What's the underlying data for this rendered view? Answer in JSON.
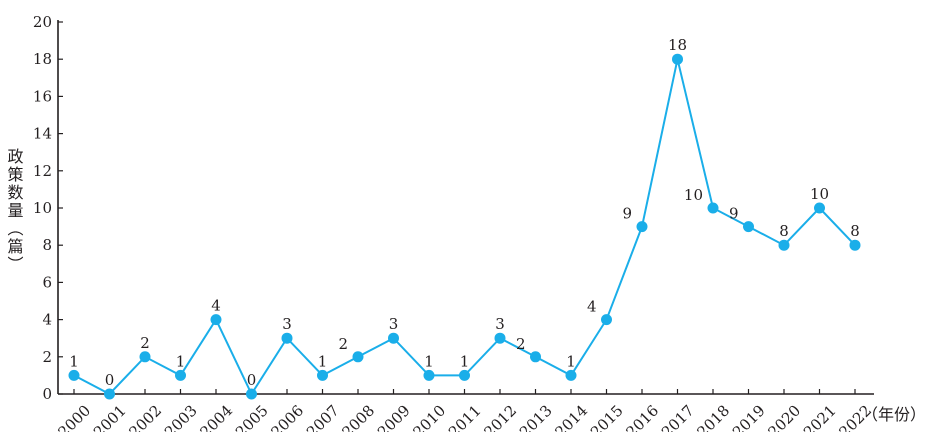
{
  "chart_data": {
    "type": "line",
    "ylabel": "政策数量（篇）",
    "xlabel": "（年份）",
    "ylim": [
      0,
      20
    ],
    "y_ticks": [
      "0",
      "2",
      "4",
      "6",
      "8",
      "10",
      "12",
      "14",
      "16",
      "18",
      "20"
    ],
    "categories": [
      "2000",
      "2001",
      "2002",
      "2003",
      "2004",
      "2005",
      "2006",
      "2007",
      "2008",
      "2009",
      "2010",
      "2011",
      "2012",
      "2013",
      "2014",
      "2015",
      "2016",
      "2017",
      "2018",
      "2019",
      "2020",
      "2021",
      "2022"
    ],
    "series": [
      {
        "values": [
          1,
          0,
          2,
          1,
          4,
          0,
          3,
          1,
          2,
          3,
          1,
          1,
          3,
          2,
          1,
          4,
          9,
          18,
          10,
          9,
          8,
          10,
          8
        ],
        "data_labels": [
          "1",
          "0",
          "2",
          "1",
          "4",
          "0",
          "3",
          "1",
          "2",
          "3",
          "1",
          "1",
          "3",
          "2",
          "1",
          "4",
          "9",
          "18",
          "10",
          "9",
          "8",
          "10",
          "8"
        ],
        "color": "#1aaee9"
      }
    ],
    "grid": false,
    "legend": "none"
  }
}
